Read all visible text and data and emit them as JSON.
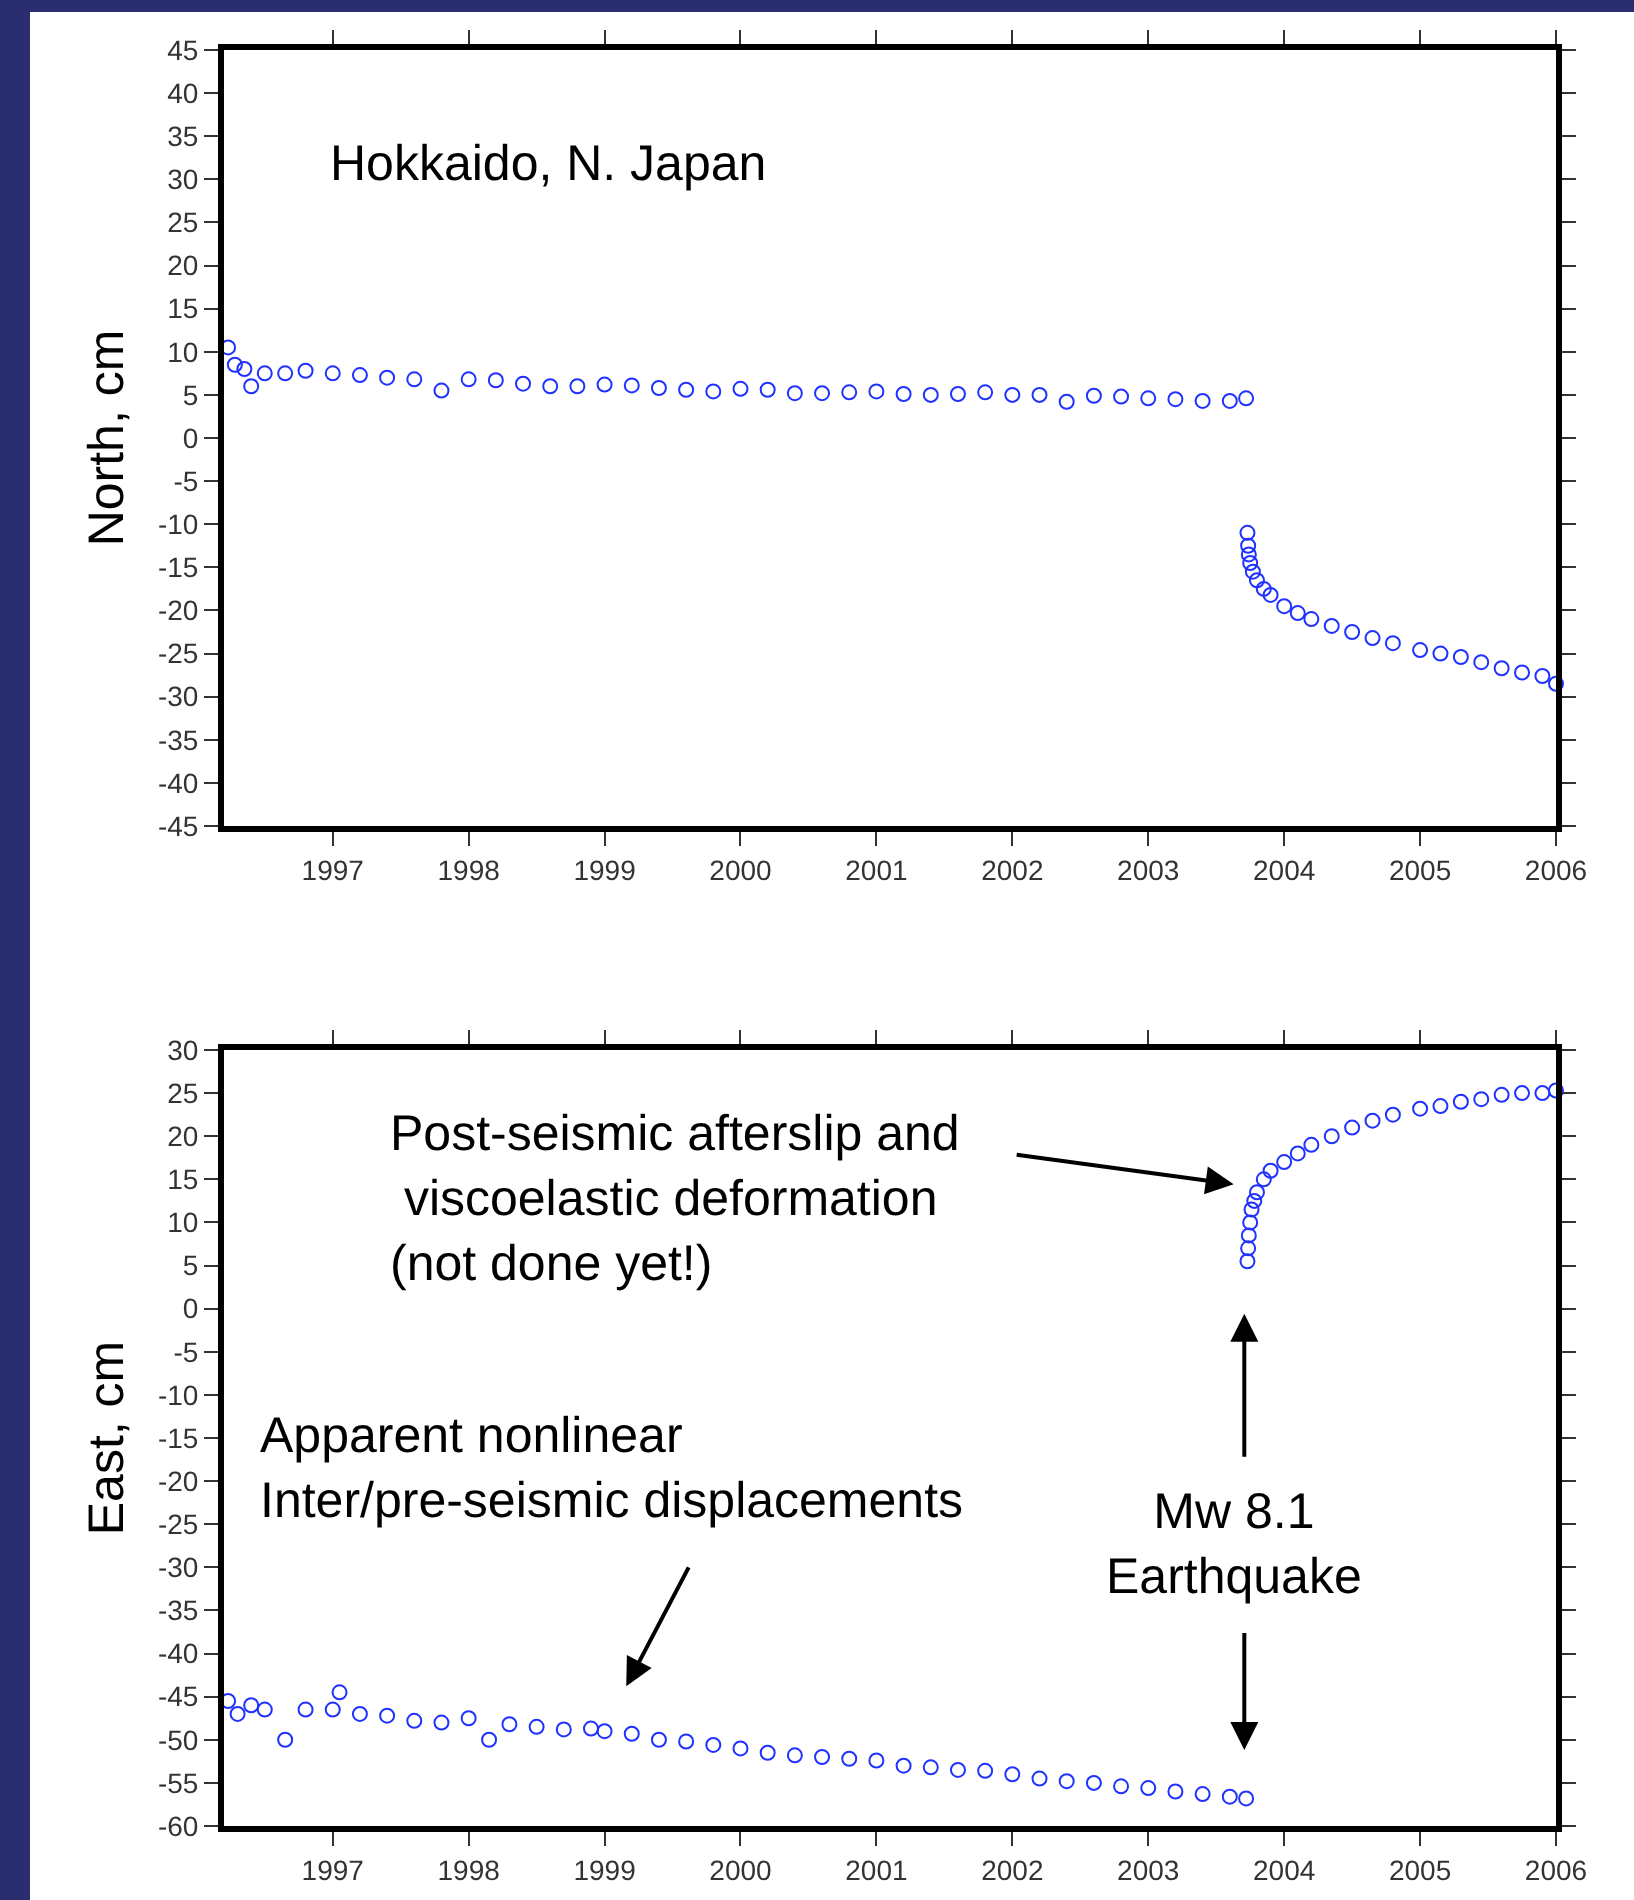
{
  "chart_data": [
    {
      "type": "scatter",
      "ylabel": "North, cm",
      "marker": "circle",
      "xlim": [
        1996.2,
        2006
      ],
      "xticks": [
        1997,
        1998,
        1999,
        2000,
        2001,
        2002,
        2003,
        2004,
        2005,
        2006
      ],
      "ylim": [
        -45,
        45
      ],
      "yticks": [
        -45,
        -40,
        -35,
        -30,
        -25,
        -20,
        -15,
        -10,
        -5,
        0,
        5,
        10,
        15,
        20,
        25,
        30,
        35,
        40,
        45
      ],
      "annotations": [
        "Hokkaido, N. Japan"
      ],
      "series": [
        {
          "color": "#1f32ff",
          "x": [
            1996.23,
            1996.28,
            1996.35,
            1996.4,
            1996.5,
            1996.65,
            1996.8,
            1997,
            1997.2,
            1997.4,
            1997.6,
            1997.8,
            1998,
            1998.2,
            1998.4,
            1998.6,
            1998.8,
            1999,
            1999.2,
            1999.4,
            1999.6,
            1999.8,
            2000,
            2000.2,
            2000.4,
            2000.6,
            2000.8,
            2001,
            2001.2,
            2001.4,
            2001.6,
            2001.8,
            2002,
            2002.2,
            2002.4,
            2002.6,
            2002.8,
            2003,
            2003.2,
            2003.4,
            2003.6,
            2003.72,
            2003.73,
            2003.735,
            2003.74,
            2003.75,
            2003.77,
            2003.8,
            2003.85,
            2003.9,
            2004,
            2004.1,
            2004.2,
            2004.35,
            2004.5,
            2004.65,
            2004.8,
            2005,
            2005.15,
            2005.3,
            2005.45,
            2005.6,
            2005.75,
            2005.9,
            2006
          ],
          "values": [
            10.5,
            8.5,
            8,
            6,
            7.5,
            7.5,
            7.8,
            7.5,
            7.3,
            7,
            6.8,
            5.5,
            6.8,
            6.7,
            6.3,
            6,
            6,
            6.2,
            6.1,
            5.8,
            5.6,
            5.4,
            5.7,
            5.6,
            5.2,
            5.2,
            5.3,
            5.4,
            5.1,
            5,
            5.1,
            5.3,
            5,
            5,
            4.2,
            4.9,
            4.8,
            4.6,
            4.5,
            4.3,
            4.3,
            4.6,
            -11,
            -12.5,
            -13.5,
            -14.5,
            -15.5,
            -16.5,
            -17.5,
            -18.2,
            -19.5,
            -20.3,
            -21,
            -21.8,
            -22.5,
            -23.2,
            -23.8,
            -24.6,
            -25,
            -25.4,
            -26,
            -26.7,
            -27.2,
            -27.6,
            -28.5
          ]
        }
      ]
    },
    {
      "type": "scatter",
      "ylabel": "East, cm",
      "marker": "circle",
      "xlim": [
        1996.2,
        2006
      ],
      "xticks": [
        1997,
        1998,
        1999,
        2000,
        2001,
        2002,
        2003,
        2004,
        2005,
        2006
      ],
      "ylim": [
        -60,
        30
      ],
      "yticks": [
        -60,
        -55,
        -50,
        -45,
        -40,
        -35,
        -30,
        -25,
        -20,
        -15,
        -10,
        -5,
        0,
        5,
        10,
        15,
        20,
        25,
        30
      ],
      "annotations": [
        "Post-seismic afterslip and\n viscoelastic deformation\n(not done yet!)",
        "Apparent nonlinear\nInter/pre-seismic displacements",
        "Mw 8.1\nEarthquake"
      ],
      "series": [
        {
          "color": "#1f32ff",
          "x": [
            1996.23,
            1996.3,
            1996.4,
            1996.5,
            1996.65,
            1996.8,
            1997,
            1997.05,
            1997.2,
            1997.4,
            1997.6,
            1997.8,
            1998,
            1998.15,
            1998.3,
            1998.5,
            1998.7,
            1998.9,
            1999,
            1999.2,
            1999.4,
            1999.6,
            1999.8,
            2000,
            2000.2,
            2000.4,
            2000.6,
            2000.8,
            2001,
            2001.2,
            2001.4,
            2001.6,
            2001.8,
            2002,
            2002.2,
            2002.4,
            2002.6,
            2002.8,
            2003,
            2003.2,
            2003.4,
            2003.6,
            2003.72,
            2003.73,
            2003.735,
            2003.74,
            2003.75,
            2003.76,
            2003.78,
            2003.8,
            2003.85,
            2003.9,
            2004,
            2004.1,
            2004.2,
            2004.35,
            2004.5,
            2004.65,
            2004.8,
            2005,
            2005.15,
            2005.3,
            2005.45,
            2005.6,
            2005.75,
            2005.9,
            2006
          ],
          "values": [
            -45.5,
            -47,
            -46,
            -46.5,
            -50,
            -46.5,
            -46.5,
            -44.5,
            -47,
            -47.2,
            -47.8,
            -48,
            -47.5,
            -50,
            -48.2,
            -48.5,
            -48.8,
            -48.7,
            -49,
            -49.3,
            -50,
            -50.2,
            -50.6,
            -51,
            -51.5,
            -51.8,
            -52,
            -52.2,
            -52.4,
            -53,
            -53.2,
            -53.5,
            -53.6,
            -54,
            -54.5,
            -54.8,
            -55,
            -55.4,
            -55.6,
            -56,
            -56.3,
            -56.6,
            -56.8,
            5.5,
            7,
            8.5,
            10,
            11.5,
            12.5,
            13.5,
            15,
            16,
            17,
            18,
            19,
            20,
            21,
            21.8,
            22.5,
            23.2,
            23.5,
            24,
            24.3,
            24.8,
            25,
            25,
            25.3
          ]
        }
      ]
    }
  ]
}
